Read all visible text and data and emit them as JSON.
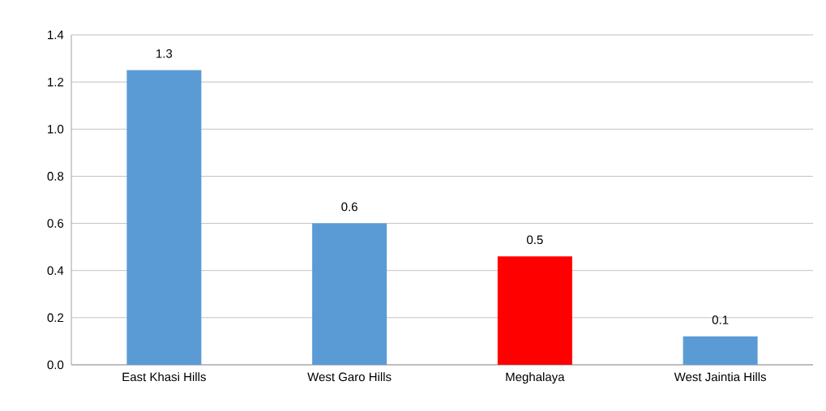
{
  "chart_data": {
    "type": "bar",
    "categories": [
      "East Khasi Hills",
      "West Garo Hills",
      "Meghalaya",
      "West Jaintia Hills"
    ],
    "values": [
      1.25,
      0.6,
      0.46,
      0.12
    ],
    "colors": [
      "#5b9bd5",
      "#5b9bd5",
      "#ff0000",
      "#5b9bd5"
    ],
    "value_labels": [
      "1.3",
      "0.6",
      "0.5",
      "0.1"
    ],
    "ylim": [
      0,
      1.4
    ],
    "yticks": [
      {
        "value": 0,
        "label": "0.0"
      },
      {
        "value": 0.2,
        "label": "0.2"
      },
      {
        "value": 0.4,
        "label": "0.4"
      },
      {
        "value": 0.6,
        "label": "0.6"
      },
      {
        "value": 0.8,
        "label": "0.8"
      },
      {
        "value": 1.0,
        "label": "1.0"
      },
      {
        "value": 1.2,
        "label": "1.2"
      },
      {
        "value": 1.4,
        "label": "1.4"
      }
    ],
    "grid": "y"
  }
}
